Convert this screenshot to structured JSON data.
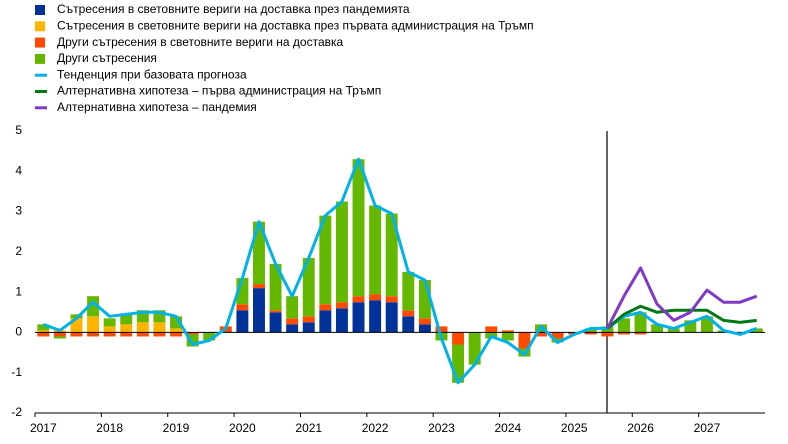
{
  "chart_data": {
    "type": "bar",
    "categories": [
      "2017",
      null,
      null,
      null,
      "2018",
      null,
      null,
      null,
      "2019",
      null,
      null,
      null,
      "2020",
      null,
      null,
      null,
      "2021",
      null,
      null,
      null,
      "2022",
      null,
      null,
      null,
      "2023",
      null,
      null,
      null,
      "2024",
      null,
      null,
      null,
      "2025",
      null,
      null,
      null,
      "2026",
      null,
      null,
      null,
      "2027",
      null,
      null,
      null
    ],
    "ylim": [
      -2,
      5
    ],
    "yticks": [
      -2,
      -1,
      0,
      1,
      2,
      3,
      4,
      5
    ],
    "series": [
      {
        "name": "Сътресения в световните вериги на доставка през пандемията",
        "type": "bar",
        "color": "#003299",
        "values": [
          0,
          0,
          0,
          0,
          0,
          0,
          0,
          0,
          0,
          0,
          0,
          0,
          0.55,
          1.1,
          0.5,
          0.2,
          0.25,
          0.55,
          0.6,
          0.75,
          0.8,
          0.75,
          0.4,
          0.2,
          0,
          0,
          0,
          0,
          0,
          0,
          0,
          0,
          0,
          0,
          0,
          0,
          0,
          0,
          0,
          0,
          0,
          0,
          0,
          0
        ]
      },
      {
        "name": "Сътресения в световните вериги на доставка през първата администрация на Тръмп",
        "type": "bar",
        "color": "#ffb400",
        "values": [
          0.05,
          0.05,
          0.35,
          0.4,
          0.15,
          0.2,
          0.25,
          0.25,
          0.1,
          0,
          0,
          0,
          0,
          0,
          0,
          0,
          0,
          0,
          0,
          0,
          0,
          0,
          0,
          0,
          0,
          0,
          0,
          0,
          0,
          0,
          0,
          0,
          0,
          0,
          0,
          0,
          0,
          0,
          0,
          0,
          0,
          0,
          0,
          0
        ]
      },
      {
        "name": "Други сътресения в световните вериги на доставка",
        "type": "bar",
        "color": "#ff4b00",
        "values": [
          -0.1,
          -0.1,
          -0.1,
          -0.1,
          -0.1,
          -0.1,
          -0.1,
          -0.1,
          -0.1,
          -0.05,
          0,
          0.15,
          0.15,
          0.1,
          0.05,
          0.15,
          0.15,
          0.15,
          0.15,
          0.15,
          0.15,
          0.15,
          0.15,
          0.15,
          0.15,
          -0.3,
          0,
          0.15,
          0.05,
          -0.4,
          -0.1,
          -0.15,
          -0.05,
          -0.05,
          -0.1,
          -0.05,
          -0.05,
          0,
          0,
          0,
          0,
          0,
          0,
          0
        ]
      },
      {
        "name": "Други сътресения",
        "type": "bar",
        "color": "#65b800",
        "values": [
          0.15,
          -0.05,
          0.1,
          0.5,
          0.2,
          0.25,
          0.3,
          0.3,
          0.3,
          -0.3,
          -0.2,
          0,
          0.65,
          1.55,
          1.15,
          0.55,
          1.45,
          2.2,
          2.5,
          3.4,
          2.2,
          2.05,
          0.95,
          0.95,
          -0.2,
          -0.95,
          -0.8,
          -0.15,
          -0.2,
          -0.2,
          0.2,
          -0.1,
          0,
          0.1,
          0.15,
          0.35,
          0.5,
          0.2,
          0.1,
          0.3,
          0.4,
          0.05,
          -0.05,
          0.1
        ]
      },
      {
        "name": "Тенденция при базовата прогноза",
        "type": "line",
        "color": "#00b1ea",
        "values": [
          0.2,
          0.05,
          0.35,
          0.75,
          0.4,
          0.45,
          0.5,
          0.5,
          0.4,
          -0.3,
          -0.2,
          0.1,
          1.35,
          2.75,
          1.7,
          0.9,
          1.85,
          2.9,
          3.25,
          4.3,
          3.15,
          2.95,
          1.5,
          1.3,
          -0.15,
          -1.25,
          -0.8,
          -0.1,
          -0.25,
          -0.55,
          0.15,
          -0.25,
          -0.05,
          0.1,
          0.1,
          0.4,
          0.5,
          0.2,
          0.1,
          0.25,
          0.4,
          0.05,
          -0.05,
          0.1
        ]
      },
      {
        "name": "Алтернативна хипотеза – първа администрация на Тръмп",
        "type": "line",
        "color": "#007816",
        "values": [
          null,
          null,
          null,
          null,
          null,
          null,
          null,
          null,
          null,
          null,
          null,
          null,
          null,
          null,
          null,
          null,
          null,
          null,
          null,
          null,
          null,
          null,
          null,
          null,
          null,
          null,
          null,
          null,
          null,
          null,
          null,
          null,
          null,
          null,
          0.1,
          0.45,
          0.65,
          0.5,
          0.55,
          0.55,
          0.55,
          0.3,
          0.25,
          0.3
        ]
      },
      {
        "name": "Алтернативна хипотеза – пандемия",
        "type": "line",
        "color": "#8139c6",
        "values": [
          null,
          null,
          null,
          null,
          null,
          null,
          null,
          null,
          null,
          null,
          null,
          null,
          null,
          null,
          null,
          null,
          null,
          null,
          null,
          null,
          null,
          null,
          null,
          null,
          null,
          null,
          null,
          null,
          null,
          null,
          null,
          null,
          null,
          null,
          0.1,
          0.9,
          1.6,
          0.7,
          0.3,
          0.5,
          1.05,
          0.75,
          0.75,
          0.9
        ]
      }
    ]
  }
}
